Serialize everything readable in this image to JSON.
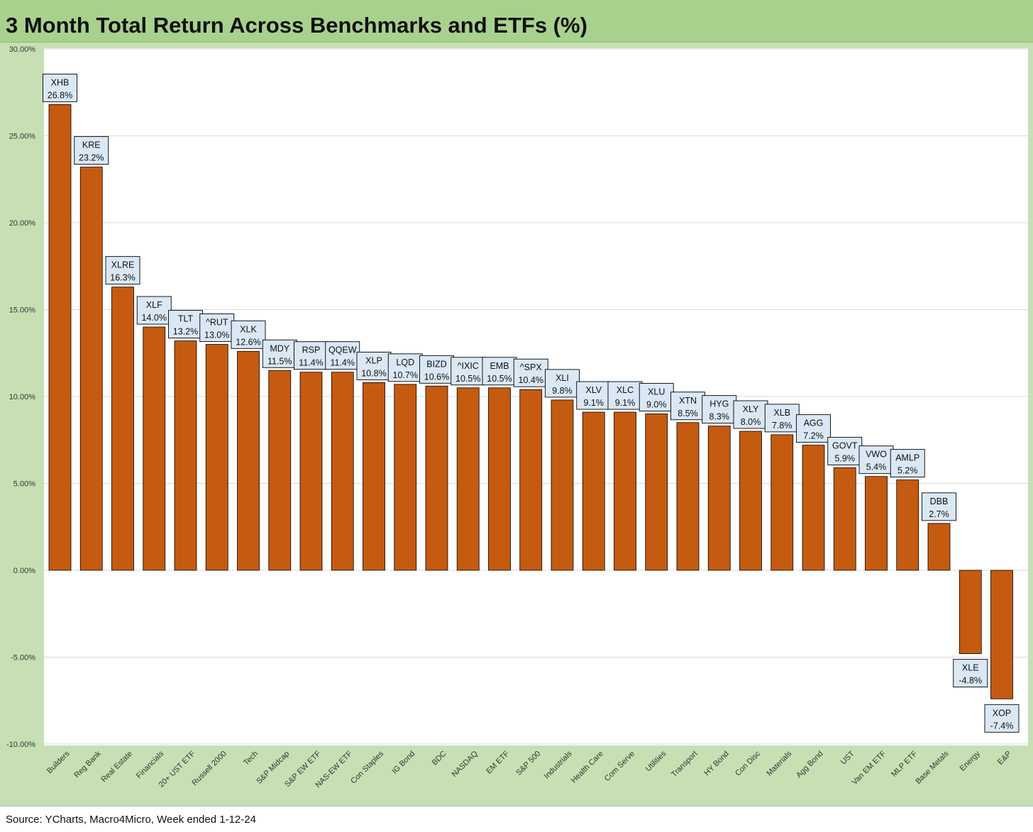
{
  "header": {
    "title": "3 Month Total Return Across Benchmarks and ETFs (%)"
  },
  "footer": {
    "source": "Source: YCharts, Macro4Micro, Week ended 1-12-24"
  },
  "colors": {
    "bar": "#c55a11",
    "bar_outline": "#000000",
    "label_box": "#dae8f5",
    "title_bar": "#a9d18e",
    "background": "#c6e0b4"
  },
  "chart_data": {
    "type": "bar",
    "title": "3 Month Total Return Across Benchmarks and ETFs (%)",
    "xlabel": "",
    "ylabel": "",
    "ylim": [
      -10,
      30
    ],
    "ytick_step": 5,
    "ytick_labels": [
      "30.00%",
      "25.00%",
      "20.00%",
      "15.00%",
      "10.00%",
      "5.00%",
      "0.00%",
      "-5.00%",
      "-10.00%"
    ],
    "grid": true,
    "legend": "none",
    "categories": [
      "Builders",
      "Reg Bank",
      "Real Estate",
      "Financials",
      "20+ UST ETF",
      "Russell 2000",
      "Tech",
      "S&P Midcap",
      "S&P EW ETF",
      "NAS-EW ETF",
      "Con Staples",
      "IG Bond",
      "BDC",
      "NASDAQ",
      "EM ETF",
      "S&P 500",
      "Industrials",
      "Health Care",
      "Com Serve",
      "Utilities",
      "Transport",
      "HY Bond",
      "Con Disc",
      "Materials",
      "Agg Bond",
      "UST",
      "Van EM ETF",
      "MLP ETF",
      "Base Metals",
      "Energy",
      "E&P"
    ],
    "tickers": [
      "XHB",
      "KRE",
      "XLRE",
      "XLF",
      "TLT",
      "^RUT",
      "XLK",
      "MDY",
      "RSP",
      "QQEW",
      "XLP",
      "LQD",
      "BIZD",
      "^IXIC",
      "EMB",
      "^SPX",
      "XLI",
      "XLV",
      "XLC",
      "XLU",
      "XTN",
      "HYG",
      "XLY",
      "XLB",
      "AGG",
      "GOVT",
      "VWO",
      "AMLP",
      "DBB",
      "XLE",
      "XOP"
    ],
    "values": [
      26.8,
      23.2,
      16.3,
      14.0,
      13.2,
      13.0,
      12.6,
      11.5,
      11.4,
      11.4,
      10.8,
      10.7,
      10.6,
      10.5,
      10.5,
      10.4,
      9.8,
      9.1,
      9.1,
      9.0,
      8.5,
      8.3,
      8.0,
      7.8,
      7.2,
      5.9,
      5.4,
      5.2,
      2.7,
      -4.8,
      -7.4
    ],
    "value_labels": [
      "26.8%",
      "23.2%",
      "16.3%",
      "14.0%",
      "13.2%",
      "13.0%",
      "12.6%",
      "11.5%",
      "11.4%",
      "11.4%",
      "10.8%",
      "10.7%",
      "10.6%",
      "10.5%",
      "10.5%",
      "10.4%",
      "9.8%",
      "9.1%",
      "9.1%",
      "9.0%",
      "8.5%",
      "8.3%",
      "8.0%",
      "7.8%",
      "7.2%",
      "5.9%",
      "5.4%",
      "5.2%",
      "2.7%",
      "-4.8%",
      "-7.4%"
    ]
  }
}
